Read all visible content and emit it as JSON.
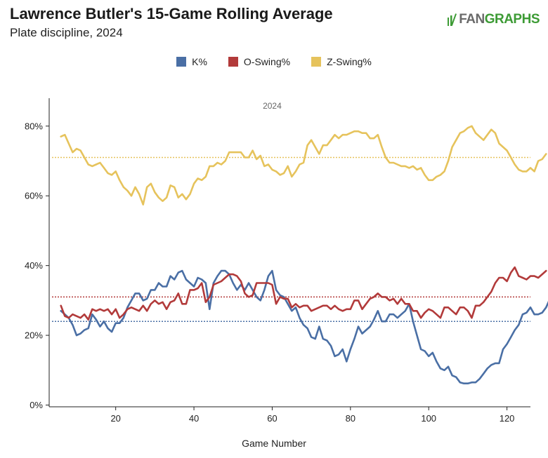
{
  "header": {
    "title": "Lawrence Butler's 15-Game Rolling Average",
    "subtitle": "Plate discipline, 2024",
    "brand_part1": "FAN",
    "brand_part2": "GRAPHS"
  },
  "chart_data": {
    "type": "line",
    "title": "Lawrence Butler's 15-Game Rolling Average",
    "subtitle": "Plate discipline, 2024",
    "xlabel": "Game Number",
    "ylabel": "",
    "annotation": "2024",
    "xlim": [
      3,
      126
    ],
    "ylim": [
      -0.5,
      88
    ],
    "x_ticks": [
      20,
      40,
      60,
      80,
      100,
      120
    ],
    "x_tick_labels": [
      "20",
      "40",
      "60",
      "80",
      "100",
      "120"
    ],
    "y_ticks": [
      0,
      20,
      40,
      60,
      80
    ],
    "y_tick_labels": [
      "0%",
      "20%",
      "40%",
      "60%",
      "80%"
    ],
    "legend_position": "top-center",
    "grid": false,
    "x_start": 6,
    "series": [
      {
        "name": "K%",
        "color": "#4a6fa5",
        "league_average": 24,
        "values": [
          27,
          26,
          25,
          23,
          20,
          20.5,
          21.5,
          22,
          26,
          24.5,
          22.5,
          24,
          22,
          21,
          23.5,
          23.5,
          25,
          28,
          30,
          32,
          32,
          30,
          30.5,
          33,
          33,
          35,
          34,
          34,
          37,
          36,
          38,
          38.5,
          36,
          35,
          34,
          36.5,
          36,
          35,
          27.5,
          35,
          37,
          38.5,
          38.5,
          37.5,
          35,
          33,
          34.5,
          33,
          35,
          33,
          31,
          30,
          33,
          37,
          38.5,
          33,
          31.5,
          31,
          29,
          27,
          28,
          25,
          23,
          22,
          19.5,
          19,
          22.5,
          19,
          18.5,
          17,
          14,
          14.5,
          16,
          12.5,
          16,
          19,
          22.5,
          20.5,
          21.5,
          22.5,
          24.5,
          27,
          24,
          24,
          26,
          26,
          25,
          26,
          27,
          29,
          24,
          20,
          16,
          15.5,
          14,
          15,
          12.5,
          10.5,
          10,
          11,
          8.5,
          8,
          6.5,
          6.2,
          6.2,
          6.5,
          6.5,
          7.5,
          9,
          10.5,
          11.5,
          12,
          12,
          16,
          17.5,
          19.5,
          21.5,
          23,
          26,
          26.5,
          28,
          26,
          26,
          26.5,
          28,
          30.5
        ]
      },
      {
        "name": "O-Swing%",
        "color": "#b23a3a",
        "league_average": 31,
        "values": [
          28.5,
          25.5,
          25,
          26,
          25.5,
          25,
          26,
          24.5,
          27.5,
          27,
          27.5,
          27,
          27.5,
          26,
          27.5,
          25,
          26,
          27.5,
          28,
          27.5,
          27,
          28.5,
          27,
          29,
          30,
          29,
          29.5,
          27.5,
          29.5,
          30,
          32,
          29,
          29,
          33,
          33,
          33.5,
          35,
          29.5,
          31,
          34.5,
          35,
          35.5,
          36.5,
          37.5,
          37.5,
          37,
          35.5,
          32,
          31,
          31.5,
          35,
          35,
          35,
          35,
          34.5,
          29,
          31,
          30.5,
          30.5,
          28,
          29,
          28,
          28.5,
          28.5,
          27,
          27.5,
          28,
          28.5,
          28.5,
          27.5,
          28.5,
          27.5,
          27,
          27.5,
          27.5,
          30,
          30,
          27.5,
          29,
          30.5,
          31,
          32,
          31,
          31,
          30,
          30.5,
          29,
          30.5,
          29,
          29,
          27,
          27,
          25,
          26.5,
          27.5,
          27,
          26,
          25,
          28,
          28,
          27,
          26,
          28,
          28,
          27,
          25,
          28.5,
          28.5,
          29.5,
          31,
          32.5,
          35,
          36.5,
          36.5,
          35.5,
          38,
          39.5,
          37,
          36.5,
          36,
          37,
          37,
          36.5,
          37.5,
          38.5
        ]
      },
      {
        "name": "Z-Swing%",
        "color": "#e6c35c",
        "league_average": 71,
        "values": [
          77,
          77.5,
          75,
          72.5,
          73.5,
          73,
          71,
          69,
          68.5,
          69,
          69.5,
          68,
          66.5,
          66,
          67,
          64.5,
          62.5,
          61.5,
          60,
          62.5,
          60.5,
          57.5,
          62.5,
          63.5,
          61,
          59.5,
          58.5,
          59.5,
          63,
          62.5,
          59.5,
          60.5,
          59,
          60.5,
          63.5,
          65,
          64.5,
          65.5,
          68.5,
          68.5,
          69.5,
          69,
          70,
          72.5,
          72.5,
          72.5,
          72.5,
          71,
          71,
          73,
          70.5,
          71.5,
          68.5,
          69,
          67.5,
          67,
          66,
          66.5,
          68.5,
          65.5,
          67,
          69,
          69.5,
          74.5,
          76,
          74,
          72,
          74.5,
          74.5,
          76,
          77.5,
          76.5,
          77.5,
          77.5,
          78,
          78.5,
          78.5,
          78,
          78,
          76.5,
          76.5,
          77.5,
          74,
          71,
          69.5,
          69.5,
          69,
          68.5,
          68.5,
          68,
          68.5,
          67.5,
          68,
          66,
          64.5,
          64.5,
          65.5,
          66,
          67,
          70,
          74,
          76,
          78,
          78.5,
          79.5,
          80,
          78,
          77,
          76,
          77.5,
          79,
          78,
          75,
          74,
          73,
          71,
          69,
          67.5,
          67,
          67,
          68,
          67,
          70,
          70.5,
          72
        ]
      }
    ]
  }
}
